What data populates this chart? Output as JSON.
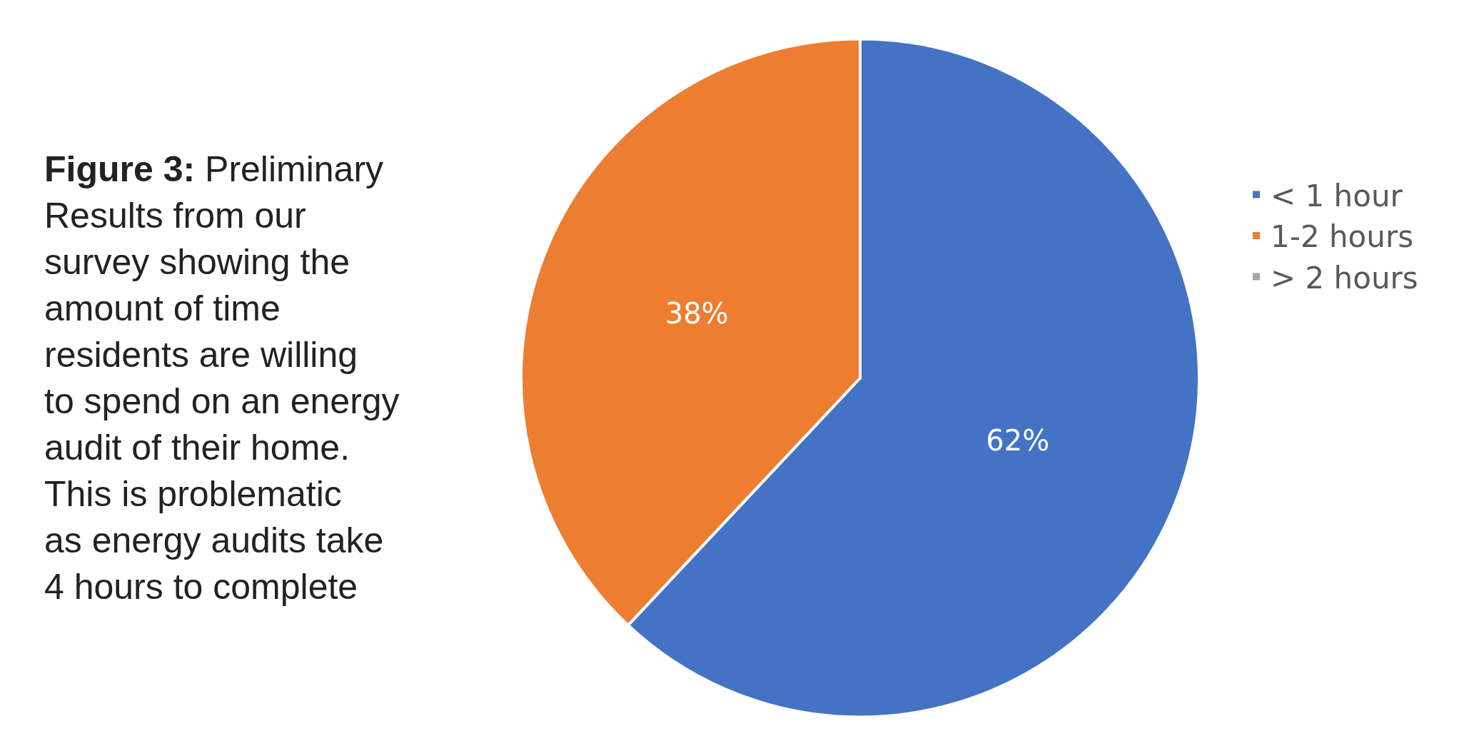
{
  "chart_data": {
    "type": "pie",
    "title": "Figure 3:",
    "subtitle": "Preliminary Results from our survey showing the amount of time residents are willing to spend on an energy audit of their home. This is problematic as energy audits take 4 hours to complete",
    "categories": [
      "< 1 hour",
      "1-2 hours",
      "> 2 hours"
    ],
    "values": [
      62,
      38,
      0
    ],
    "colors": [
      "#4472c4",
      "#ed7d31",
      "#a5a5a5"
    ],
    "value_labels": [
      "62%",
      "38%",
      null
    ],
    "legend": "right"
  }
}
